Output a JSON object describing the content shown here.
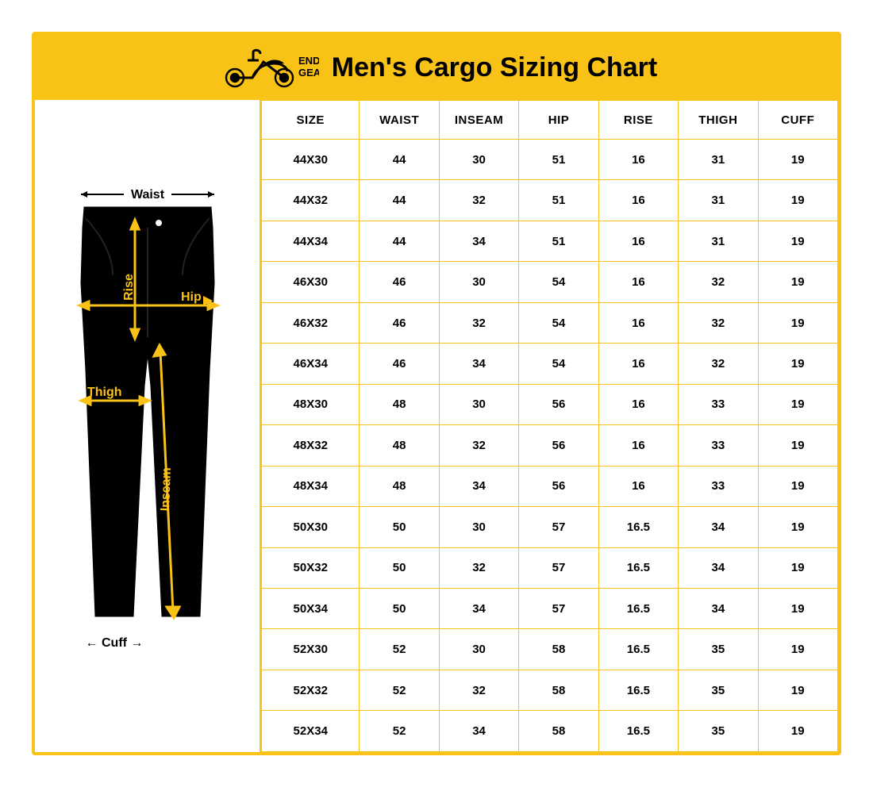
{
  "colors": {
    "accent": "#f9c216",
    "border": "#f9c216",
    "header_bg": "#f9c216",
    "text": "#000000",
    "bg": "#ffffff",
    "pants_fill": "#000000",
    "label_arrow": "#f9c216"
  },
  "logo": {
    "brand_top": "ENDO",
    "brand_bottom": "GEAR"
  },
  "title": "Men's Cargo Sizing Chart",
  "diagram": {
    "labels": {
      "waist": "Waist",
      "rise": "Rise",
      "hip": "Hip",
      "thigh": "Thigh",
      "inseam": "Inseam",
      "cuff": "Cuff"
    }
  },
  "table": {
    "columns": [
      "SIZE",
      "WAIST",
      "INSEAM",
      "HIP",
      "RISE",
      "THIGH",
      "CUFF"
    ],
    "rows": [
      [
        "44X30",
        "44",
        "30",
        "51",
        "16",
        "31",
        "19"
      ],
      [
        "44X32",
        "44",
        "32",
        "51",
        "16",
        "31",
        "19"
      ],
      [
        "44X34",
        "44",
        "34",
        "51",
        "16",
        "31",
        "19"
      ],
      [
        "46X30",
        "46",
        "30",
        "54",
        "16",
        "32",
        "19"
      ],
      [
        "46X32",
        "46",
        "32",
        "54",
        "16",
        "32",
        "19"
      ],
      [
        "46X34",
        "46",
        "34",
        "54",
        "16",
        "32",
        "19"
      ],
      [
        "48X30",
        "48",
        "30",
        "56",
        "16",
        "33",
        "19"
      ],
      [
        "48X32",
        "48",
        "32",
        "56",
        "16",
        "33",
        "19"
      ],
      [
        "48X34",
        "48",
        "34",
        "56",
        "16",
        "33",
        "19"
      ],
      [
        "50X30",
        "50",
        "30",
        "57",
        "16.5",
        "34",
        "19"
      ],
      [
        "50X32",
        "50",
        "32",
        "57",
        "16.5",
        "34",
        "19"
      ],
      [
        "50X34",
        "50",
        "34",
        "57",
        "16.5",
        "34",
        "19"
      ],
      [
        "52X30",
        "52",
        "30",
        "58",
        "16.5",
        "35",
        "19"
      ],
      [
        "52X32",
        "52",
        "32",
        "58",
        "16.5",
        "35",
        "19"
      ],
      [
        "52X34",
        "52",
        "34",
        "58",
        "16.5",
        "35",
        "19"
      ]
    ]
  }
}
